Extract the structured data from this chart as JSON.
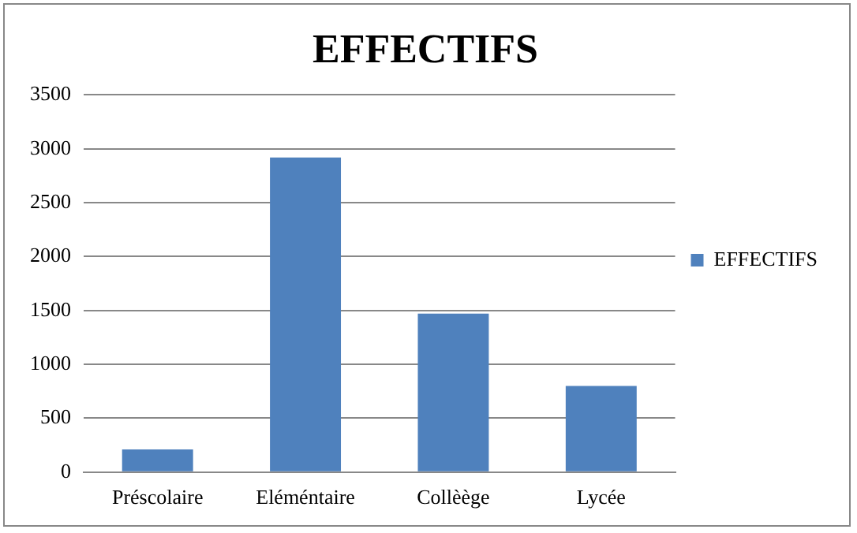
{
  "chart_data": {
    "type": "bar",
    "title": "EFFECTIFS",
    "categories": [
      "Préscolaire",
      "Eléméntaire",
      "Collèège",
      "Lycée"
    ],
    "series": [
      {
        "name": "EFFECTIFS",
        "color": "#4f81bd",
        "values": [
          210,
          2920,
          1470,
          800
        ]
      }
    ],
    "ylim": [
      0,
      3500
    ],
    "yticks": [
      0,
      500,
      1000,
      1500,
      2000,
      2500,
      3000,
      3500
    ],
    "grid": "y",
    "legend": "right"
  }
}
